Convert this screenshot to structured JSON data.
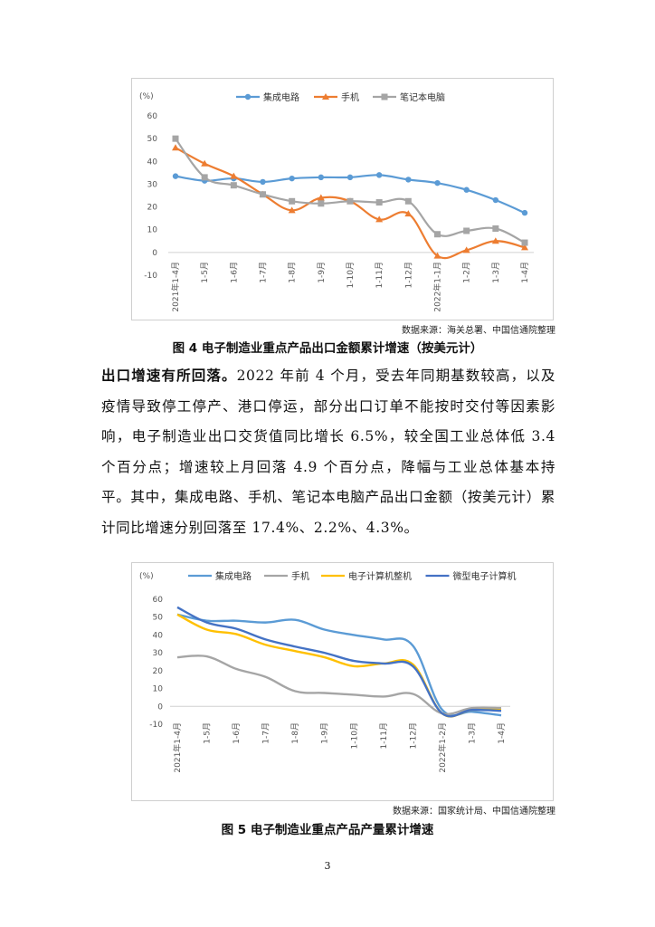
{
  "charts": [
    {
      "unit_label": "(%)",
      "source": "数据来源：海关总署、中国信通院整理",
      "caption": "图 4  电子制造业重点产品出口金额累计增速（按美元计）"
    },
    {
      "unit_label": "(%)",
      "source": "数据来源：国家统计局、中国信通院整理",
      "caption": "图 5  电子制造业重点产品产量累计增速"
    }
  ],
  "body": {
    "lead": "出口增速有所回落。",
    "text": "2022 年前 4 个月，受去年同期基数较高，以及疫情导致停工停产、港口停运，部分出口订单不能按时交付等因素影响，电子制造业出口交货值同比增长 6.5%，较全国工业总体低 3.4 个百分点；增速较上月回落 4.9 个百分点，降幅与工业总体基本持平。其中，集成电路、手机、笔记本电脑产品出口金额（按美元计）累计同比增速分别回落至 17.4%、2.2%、4.3%。"
  },
  "page_number": "3",
  "chart_data": [
    {
      "type": "line",
      "ylim": [
        -10,
        60
      ],
      "yticks": [
        -10,
        0,
        10,
        20,
        30,
        40,
        50,
        60
      ],
      "categories": [
        "2021年1-4月",
        "1-5月",
        "1-6月",
        "1-7月",
        "1-8月",
        "1-9月",
        "1-10月",
        "1-11月",
        "1-12月",
        "2022年1-1月",
        "1-2月",
        "1-3月",
        "1-4月"
      ],
      "legend_position": "top",
      "grid": false,
      "series": [
        {
          "name": "集成电路",
          "color": "#5b9bd5",
          "marker": "circle",
          "values": [
            33.5,
            31.5,
            32.5,
            31,
            32.5,
            33,
            33,
            34,
            32,
            30.5,
            27.5,
            23,
            17.4
          ]
        },
        {
          "name": "手机",
          "color": "#ed7d31",
          "marker": "triangle",
          "values": [
            46,
            39,
            33.5,
            25.5,
            18.5,
            24,
            22.5,
            14.5,
            17,
            -1.5,
            1,
            5,
            2.2
          ]
        },
        {
          "name": "笔记本电脑",
          "color": "#a5a5a5",
          "marker": "square",
          "values": [
            50,
            33,
            29.5,
            25.5,
            22.5,
            21.5,
            22.5,
            22,
            22.5,
            8,
            9.5,
            10.5,
            4.3
          ]
        }
      ]
    },
    {
      "type": "line",
      "ylim": [
        -10,
        60
      ],
      "yticks": [
        -10,
        0,
        10,
        20,
        30,
        40,
        50,
        60
      ],
      "categories": [
        "2021年1-4月",
        "1-5月",
        "1-6月",
        "1-7月",
        "1-8月",
        "1-9月",
        "1-10月",
        "1-11月",
        "1-12月",
        "2022年1-2月",
        "1-3月",
        "1-4月"
      ],
      "legend_position": "top",
      "grid": false,
      "series": [
        {
          "name": "集成电路",
          "color": "#5b9bd5",
          "values": [
            51.5,
            48,
            48,
            47,
            48.5,
            43,
            40,
            37.5,
            34,
            -2,
            -3,
            -5
          ]
        },
        {
          "name": "手机",
          "color": "#a5a5a5",
          "values": [
            27.5,
            28,
            21,
            16.5,
            8.5,
            7.5,
            6.5,
            5.5,
            7,
            -4,
            -1,
            -1
          ]
        },
        {
          "name": "电子计算机整机",
          "color": "#ffc000",
          "values": [
            51.5,
            43,
            40.5,
            34.5,
            31,
            27.5,
            22.5,
            24,
            23.5,
            -4,
            -2,
            -2
          ]
        },
        {
          "name": "微型电子计算机",
          "color": "#4472c4",
          "values": [
            55.5,
            47,
            43.5,
            37.5,
            33.5,
            30,
            25.5,
            24,
            22.5,
            -4,
            -2,
            -2.5
          ]
        }
      ]
    }
  ]
}
